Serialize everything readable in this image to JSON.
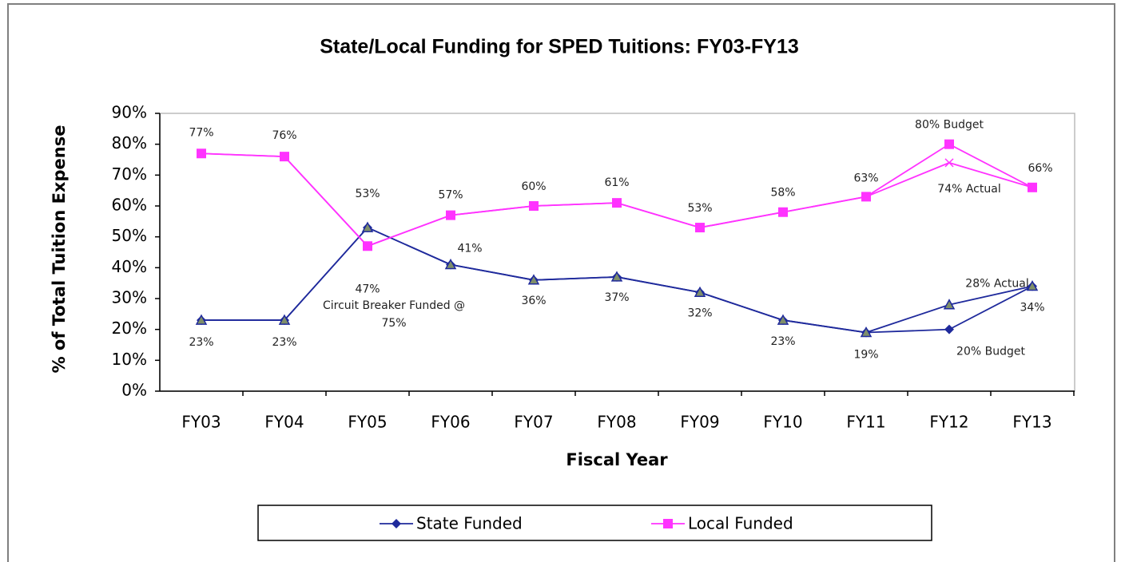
{
  "chart_data": {
    "type": "line",
    "title": "State/Local Funding for SPED Tuitions:  FY03-FY13",
    "x_label": "Fiscal Year",
    "y_label": "% of Total Tuition Expense",
    "categories": [
      "FY03",
      "FY04",
      "FY05",
      "FY06",
      "FY07",
      "FY08",
      "FY09",
      "FY10",
      "FY11",
      "FY12",
      "FY13"
    ],
    "series": [
      {
        "name": "State Funded",
        "color": "#1f2a9c",
        "marker": "diamond",
        "values": [
          23,
          23,
          53,
          41,
          36,
          37,
          32,
          23,
          19,
          20,
          34
        ],
        "value_labels": [
          "23%",
          "23%",
          "53%",
          "41%",
          "36%",
          "37%",
          "32%",
          "23%",
          "19%",
          "20% Budget",
          "34%"
        ]
      },
      {
        "name": "Local Funded",
        "color": "#ff33ff",
        "marker": "square",
        "values": [
          77,
          76,
          47,
          57,
          60,
          61,
          53,
          58,
          63,
          80,
          66
        ],
        "value_labels": [
          "77%",
          "76%",
          "47%",
          "57%",
          "60%",
          "61%",
          "53%",
          "58%",
          "63%",
          "80% Budget",
          "66%"
        ]
      },
      {
        "color": "#1f2a9c",
        "marker": "triangle",
        "values": [
          23,
          23,
          53,
          41,
          36,
          37,
          32,
          23,
          19,
          28,
          34
        ],
        "value_labels": [
          null,
          null,
          null,
          null,
          null,
          null,
          null,
          null,
          null,
          "28% Actual",
          null
        ]
      },
      {
        "color": "#ff33ff",
        "marker": "cross",
        "values": [
          77,
          76,
          47,
          57,
          60,
          61,
          53,
          58,
          63,
          74,
          66
        ],
        "value_labels": [
          null,
          null,
          null,
          null,
          null,
          null,
          null,
          null,
          null,
          "74% Actual",
          null
        ]
      }
    ],
    "annotations": [
      "Circuit Breaker Funded @",
      "75%"
    ],
    "ylim": [
      0,
      90
    ],
    "yticks": [
      {
        "value": 0,
        "label": "0%"
      },
      {
        "value": 10,
        "label": "10%"
      },
      {
        "value": 20,
        "label": "20%"
      },
      {
        "value": 30,
        "label": "30%"
      },
      {
        "value": 40,
        "label": "40%"
      },
      {
        "value": 50,
        "label": "50%"
      },
      {
        "value": 60,
        "label": "60%"
      },
      {
        "value": 70,
        "label": "70%"
      },
      {
        "value": 80,
        "label": "80%"
      },
      {
        "value": 90,
        "label": "90%"
      }
    ],
    "legend": "bottom"
  }
}
